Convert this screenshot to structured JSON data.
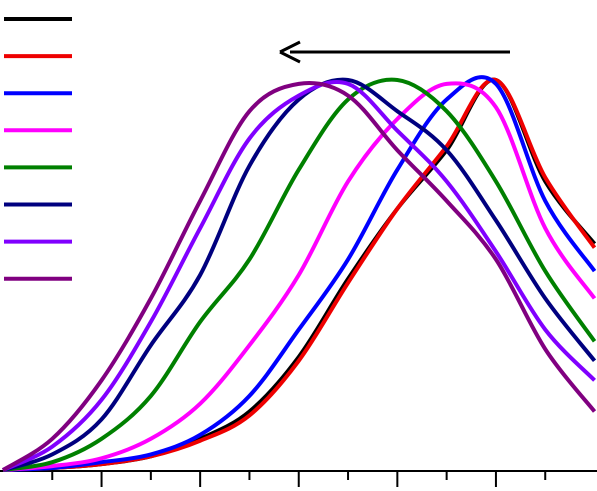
{
  "chart_data": {
    "type": "line",
    "x": [
      0,
      1,
      2,
      3,
      4,
      5,
      6,
      7,
      8,
      9,
      10,
      11,
      12
    ],
    "series": [
      {
        "color": "#000000",
        "values": [
          0,
          0.005,
          0.015,
          0.035,
          0.08,
          0.15,
          0.29,
          0.49,
          0.67,
          0.82,
          1.0,
          0.74,
          0.58
        ]
      },
      {
        "color": "#ee0000",
        "values": [
          0,
          0.005,
          0.015,
          0.035,
          0.075,
          0.14,
          0.28,
          0.48,
          0.67,
          0.83,
          1.0,
          0.75,
          0.57
        ]
      },
      {
        "color": "#0000ff",
        "values": [
          0,
          0.005,
          0.02,
          0.04,
          0.09,
          0.19,
          0.36,
          0.54,
          0.77,
          0.95,
          0.99,
          0.69,
          0.51
        ]
      },
      {
        "color": "#ff00ff",
        "values": [
          0,
          0.01,
          0.03,
          0.08,
          0.17,
          0.32,
          0.5,
          0.74,
          0.9,
          0.99,
          0.93,
          0.62,
          0.44
        ]
      },
      {
        "color": "#008000",
        "values": [
          0,
          0.02,
          0.08,
          0.19,
          0.38,
          0.54,
          0.77,
          0.95,
          1.0,
          0.92,
          0.74,
          0.51,
          0.33
        ]
      },
      {
        "color": "#00007f",
        "values": [
          0,
          0.04,
          0.13,
          0.32,
          0.5,
          0.78,
          0.95,
          1.0,
          0.92,
          0.82,
          0.64,
          0.44,
          0.28
        ]
      },
      {
        "color": "#8000ff",
        "values": [
          0,
          0.06,
          0.18,
          0.38,
          0.62,
          0.85,
          0.96,
          0.99,
          0.87,
          0.74,
          0.56,
          0.36,
          0.23
        ]
      },
      {
        "color": "#800080",
        "values": [
          0,
          0.08,
          0.23,
          0.44,
          0.69,
          0.92,
          0.99,
          0.96,
          0.82,
          0.69,
          0.54,
          0.31,
          0.15
        ]
      }
    ],
    "xlim": [
      -0.06,
      12.05
    ],
    "xticks": [
      2,
      4,
      6,
      8,
      10
    ],
    "xminorticks": [
      1,
      3,
      5,
      7,
      9,
      11
    ],
    "ylim": [
      0,
      1.2
    ]
  }
}
